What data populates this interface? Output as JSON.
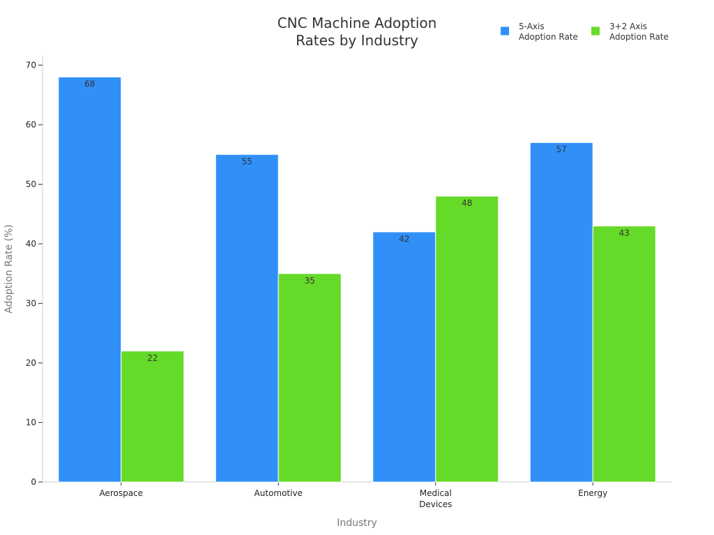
{
  "chart_data": {
    "type": "bar",
    "title": [
      "CNC Machine Adoption",
      "Rates by Industry"
    ],
    "xlabel": "Industry",
    "ylabel": "Adoption Rate (%)",
    "categories": [
      [
        "Aerospace"
      ],
      [
        "Automotive"
      ],
      [
        "Medical",
        "Devices"
      ],
      [
        "Energy"
      ]
    ],
    "series": [
      {
        "name": [
          "5-Axis",
          "Adoption Rate"
        ],
        "color": "#3090F8",
        "values": [
          68,
          55,
          42,
          57
        ]
      },
      {
        "name": [
          "3+2 Axis",
          "Adoption Rate"
        ],
        "color": "#66DA28",
        "values": [
          22,
          35,
          48,
          43
        ]
      }
    ],
    "ylim": [
      0,
      70
    ],
    "yticks": [
      0,
      10,
      20,
      30,
      40,
      50,
      60,
      70
    ],
    "grid": false,
    "legend": "top-right",
    "data_labels": true
  }
}
